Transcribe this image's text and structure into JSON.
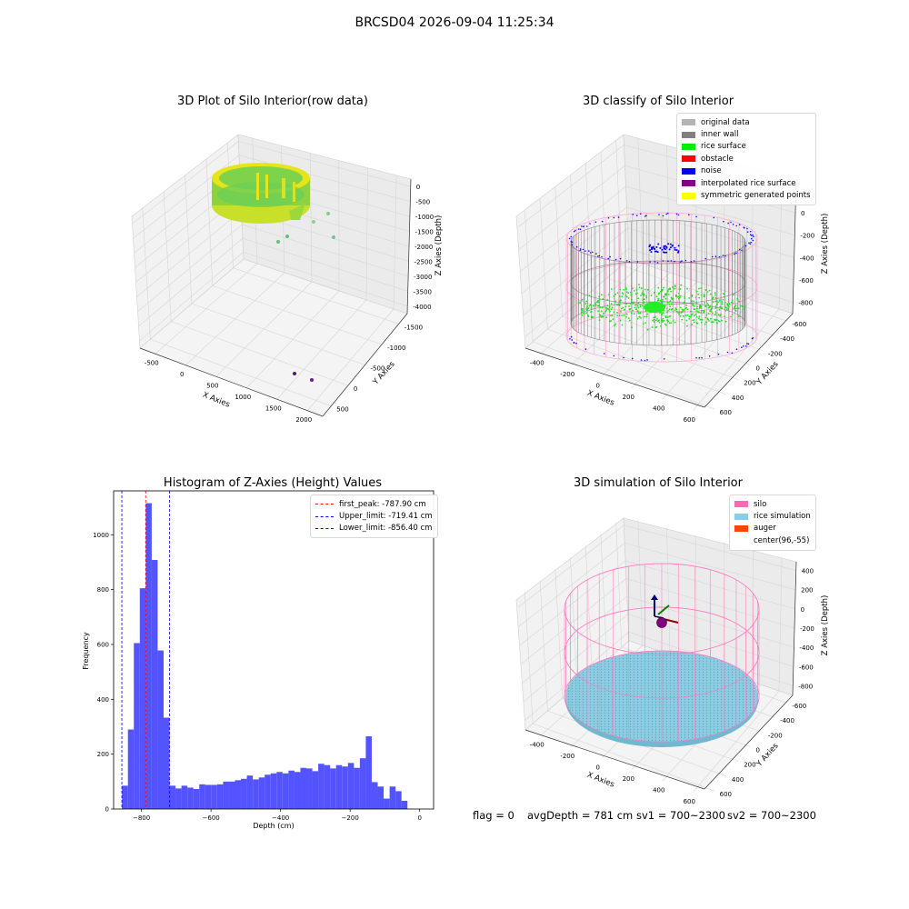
{
  "suptitle": "BRCSD04 2026-09-04 11:25:34",
  "panels": {
    "raw": {
      "title": "3D Plot of Silo Interior(row data)",
      "xlabel": "X Axies",
      "ylabel": "Y Axies",
      "zlabel": "Z Axies (Depth)",
      "xticks": [
        "-500",
        "0",
        "500",
        "1000",
        "1500",
        "2000"
      ],
      "yticks": [
        "500",
        "0",
        "-500",
        "-1000",
        "-1500"
      ],
      "zticks": [
        "0",
        "-500",
        "-1000",
        "-1500",
        "-2000",
        "-2500",
        "-3000",
        "-3500",
        "-4000"
      ]
    },
    "classify": {
      "title": "3D classify of Silo Interior",
      "xlabel": "X Axies",
      "ylabel": "Y Axies",
      "zlabel": "Z Axies (Depth)",
      "xticks": [
        "-400",
        "-200",
        "0",
        "200",
        "400",
        "600"
      ],
      "yticks": [
        "600",
        "400",
        "200",
        "0",
        "-200",
        "-400",
        "-600"
      ],
      "zticks": [
        "200",
        "0",
        "-200",
        "-400",
        "-600",
        "-800"
      ],
      "legend": [
        {
          "label": "original data",
          "color": "#b3b3b3"
        },
        {
          "label": "inner wall",
          "color": "#808080"
        },
        {
          "label": "rice surface",
          "color": "#00ee00"
        },
        {
          "label": "obstacle",
          "color": "#ff0000"
        },
        {
          "label": "noise",
          "color": "#0000ee"
        },
        {
          "label": "interpolated rice surface",
          "color": "#800080"
        },
        {
          "label": "symmetric generated points",
          "color": "#ffff00"
        }
      ]
    },
    "sim": {
      "title": "3D simulation of Silo Interior",
      "xlabel": "X Axies",
      "ylabel": "Y Axies",
      "zlabel": "Z Axies (Depth)",
      "xticks": [
        "-400",
        "-200",
        "0",
        "200",
        "400",
        "600"
      ],
      "yticks": [
        "600",
        "400",
        "200",
        "0",
        "-200",
        "-400",
        "-600"
      ],
      "zticks": [
        "400",
        "200",
        "0",
        "-200",
        "-400",
        "-600",
        "-800"
      ],
      "legend": [
        {
          "label": "silo",
          "color": "#ff69b4"
        },
        {
          "label": "rice simulation",
          "color": "#87ceeb"
        },
        {
          "label": "auger",
          "color": "#ff4500"
        },
        {
          "label": "center(96,-55)",
          "color": ""
        }
      ]
    }
  },
  "footer": {
    "flag": "flag = 0",
    "avg": "avgDepth = 781 cm",
    "sv1": "sv1 = 700~2300",
    "sv2": "sv2 = 700~2300"
  },
  "chart_data": [
    {
      "type": "bar",
      "title": "Histogram of Z-Axies (Height) Values",
      "xlabel": "Depth (cm)",
      "ylabel": "Frequency",
      "xlim": [
        -880,
        40
      ],
      "ylim": [
        0,
        1160
      ],
      "xticks": [
        -800,
        -600,
        -400,
        -200,
        0
      ],
      "yticks": [
        0,
        200,
        400,
        600,
        800,
        1000
      ],
      "bin_edges_start": -856,
      "bin_width": 17.1,
      "values": [
        85,
        290,
        605,
        805,
        1115,
        908,
        578,
        333,
        85,
        75,
        85,
        78,
        73,
        90,
        88,
        88,
        90,
        100,
        100,
        105,
        110,
        122,
        108,
        115,
        125,
        130,
        135,
        130,
        140,
        135,
        150,
        148,
        138,
        165,
        160,
        148,
        160,
        155,
        168,
        150,
        185,
        265,
        98,
        82,
        38,
        82,
        65,
        30
      ],
      "vlines": [
        {
          "label": "first_peak: -787.90 cm",
          "x": -787.9,
          "color": "#ff0000"
        },
        {
          "label": "Upper_limit: -719.41 cm",
          "x": -719.41,
          "color": "#0000ff"
        },
        {
          "label": "Lower_limit: -856.40 cm",
          "x": -856.4,
          "color": "#0000ff"
        }
      ],
      "bar_color": "#5050ff",
      "legend_position": "top-right",
      "grid": false
    }
  ]
}
